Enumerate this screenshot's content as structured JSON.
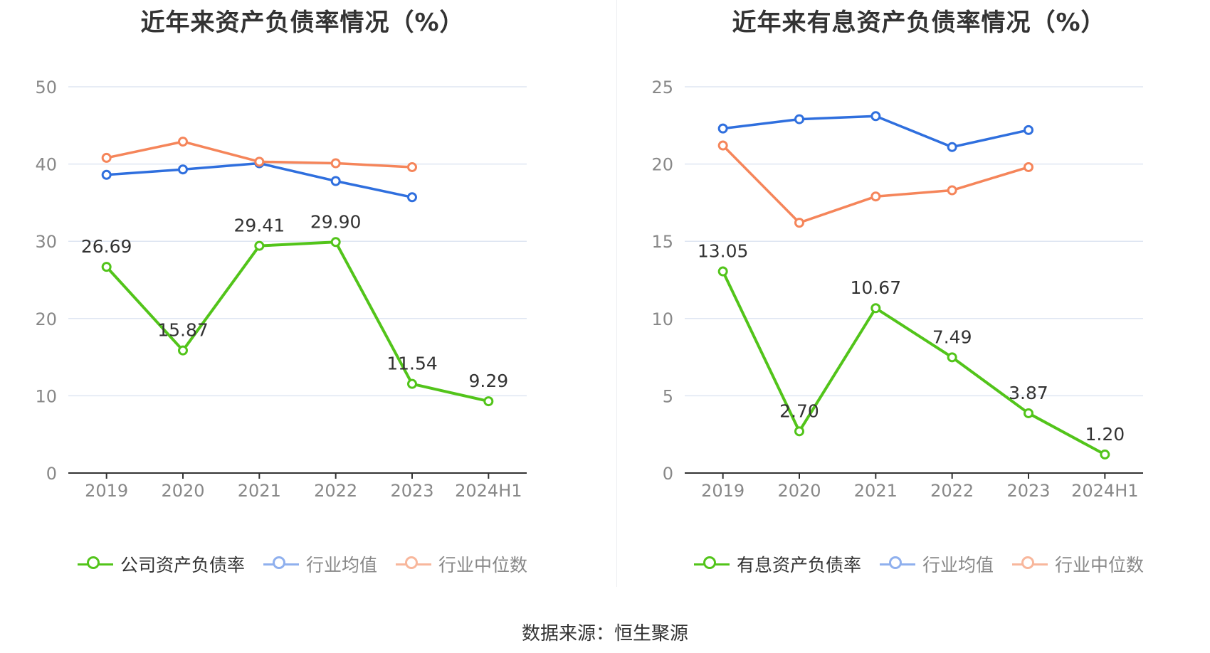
{
  "footer": {
    "source": "数据来源：恒生聚源"
  },
  "colors": {
    "company": "#52c41a",
    "avg": "#2f6fde",
    "median": "#f5855a",
    "grid": "#dfe6f2",
    "axis": "#333333",
    "tick": "#888888"
  },
  "chart_data": [
    {
      "type": "line",
      "title": "近年来资产负债率情况（%）",
      "categories": [
        "2019",
        "2020",
        "2021",
        "2022",
        "2023",
        "2024H1"
      ],
      "ylim": [
        0,
        50
      ],
      "yticks": [
        0,
        10,
        20,
        30,
        40,
        50
      ],
      "grid": true,
      "legend_position": "bottom",
      "series": [
        {
          "name": "公司资产负债率",
          "values": [
            26.69,
            15.87,
            29.41,
            29.9,
            11.54,
            9.29
          ],
          "labels": [
            "26.69",
            "15.87",
            "29.41",
            "29.90",
            "11.54",
            "9.29"
          ]
        },
        {
          "name": "行业均值",
          "values": [
            38.6,
            39.3,
            40.1,
            37.8,
            35.7,
            null
          ]
        },
        {
          "name": "行业中位数",
          "values": [
            40.8,
            42.9,
            40.3,
            40.1,
            39.6,
            null
          ]
        }
      ]
    },
    {
      "type": "line",
      "title": "近年来有息资产负债率情况（%）",
      "categories": [
        "2019",
        "2020",
        "2021",
        "2022",
        "2023",
        "2024H1"
      ],
      "ylim": [
        0,
        25
      ],
      "yticks": [
        0,
        5,
        10,
        15,
        20,
        25
      ],
      "grid": true,
      "legend_position": "bottom",
      "series": [
        {
          "name": "有息资产负债率",
          "values": [
            13.05,
            2.7,
            10.67,
            7.49,
            3.87,
            1.2
          ],
          "labels": [
            "13.05",
            "2.70",
            "10.67",
            "7.49",
            "3.87",
            "1.20"
          ]
        },
        {
          "name": "行业均值",
          "values": [
            22.3,
            22.9,
            23.1,
            21.1,
            22.2,
            null
          ]
        },
        {
          "name": "行业中位数",
          "values": [
            21.2,
            16.2,
            17.9,
            18.3,
            19.8,
            null
          ]
        }
      ]
    }
  ]
}
